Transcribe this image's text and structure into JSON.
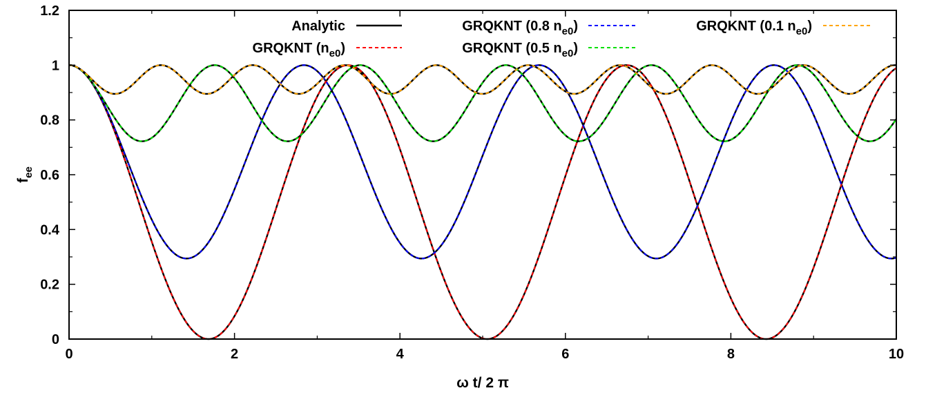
{
  "chart_data": {
    "type": "line",
    "title": "",
    "xlabel": "ω t/ 2 π",
    "ylabel": "fee",
    "ylabel_parts": {
      "base": "f",
      "sub": "ee"
    },
    "xlim": [
      0,
      10
    ],
    "ylim": [
      0,
      1.2
    ],
    "x_ticks": [
      0,
      2,
      4,
      6,
      8,
      10
    ],
    "x_tick_labels": [
      "0",
      "2",
      "4",
      "6",
      "8",
      "10"
    ],
    "y_ticks": [
      0,
      0.2,
      0.4,
      0.6,
      0.8,
      1,
      1.2
    ],
    "y_tick_labels": [
      "0",
      "0.2",
      "0.4",
      "0.6",
      "0.8",
      "1",
      "1.2"
    ],
    "grid": false,
    "legend_position": "top",
    "curve_form": "f(x) = 1 - A*sin^2(pi*x/P)",
    "series": [
      {
        "name": "Analytic",
        "legend_sub": "",
        "legend_suffix": "",
        "color": "#000000",
        "dash": "solid",
        "components": [
          {
            "A": 1.0,
            "P": 3.37
          },
          {
            "A": 0.706,
            "P": 2.84
          },
          {
            "A": 0.278,
            "P": 1.76
          },
          {
            "A": 0.105,
            "P": 1.11
          }
        ]
      },
      {
        "name": "GRQKNT (n",
        "legend_sub": "e0",
        "legend_suffix": ")",
        "color": "#ff0000",
        "dash": "dashed",
        "components": [
          {
            "A": 1.0,
            "P": 3.37
          }
        ]
      },
      {
        "name": "GRQKNT (0.8 n",
        "legend_sub": "e0",
        "legend_suffix": ")",
        "color": "#0000ff",
        "dash": "dashed",
        "components": [
          {
            "A": 0.706,
            "P": 2.84
          }
        ]
      },
      {
        "name": "GRQKNT (0.5 n",
        "legend_sub": "e0",
        "legend_suffix": ")",
        "color": "#00e000",
        "dash": "dashed",
        "components": [
          {
            "A": 0.278,
            "P": 1.76
          }
        ]
      },
      {
        "name": "GRQKNT (0.1 n",
        "legend_sub": "e0",
        "legend_suffix": ")",
        "color": "#ffa500",
        "dash": "dashed",
        "components": [
          {
            "A": 0.105,
            "P": 1.11
          }
        ]
      }
    ]
  }
}
